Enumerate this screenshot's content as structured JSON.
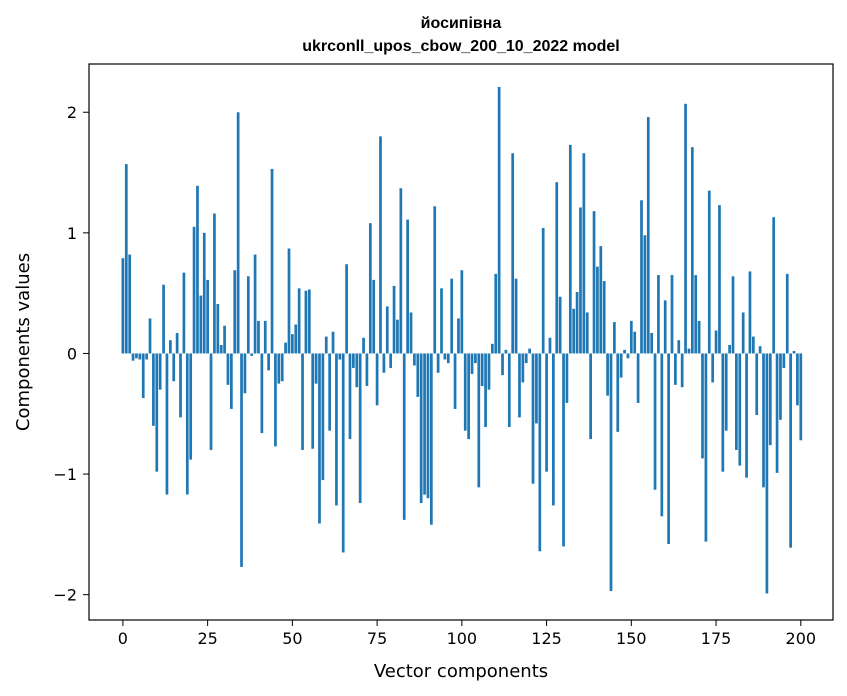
{
  "chart_data": {
    "type": "bar",
    "title_line1": "йосипівна",
    "title_line2": "ukrconll_upos_cbow_200_10_2022 model",
    "xlabel": "Vector components",
    "ylabel": "Components values",
    "xlim": [
      -10,
      209.5
    ],
    "ylim": [
      -2.21,
      2.4
    ],
    "x_ticks": [
      0,
      25,
      50,
      75,
      100,
      125,
      150,
      175,
      200
    ],
    "y_ticks": [
      -2,
      -1,
      0,
      1,
      2
    ],
    "y_tick_labels": [
      "−2",
      "−1",
      "0",
      "1",
      "2"
    ],
    "bar_color": "#1f77b4",
    "grid": false,
    "legend": "none",
    "values": [
      0.79,
      1.57,
      0.82,
      -0.06,
      -0.04,
      -0.05,
      -0.37,
      -0.05,
      0.29,
      -0.6,
      -0.98,
      -0.3,
      0.57,
      -1.17,
      0.11,
      -0.23,
      0.17,
      -0.53,
      0.67,
      -1.17,
      -0.88,
      1.05,
      1.39,
      0.48,
      1.0,
      0.61,
      -0.8,
      1.16,
      0.41,
      0.07,
      0.23,
      -0.26,
      -0.46,
      0.69,
      2.0,
      -1.77,
      -0.33,
      0.64,
      -0.02,
      0.82,
      0.27,
      -0.66,
      0.27,
      -0.14,
      1.53,
      -0.77,
      -0.25,
      -0.23,
      0.09,
      0.87,
      0.16,
      0.24,
      0.54,
      -0.8,
      0.52,
      0.53,
      -0.79,
      -0.25,
      -1.41,
      -1.05,
      0.14,
      -0.64,
      0.18,
      -1.26,
      -0.05,
      -1.65,
      0.74,
      -0.71,
      -0.12,
      -0.28,
      -1.24,
      0.13,
      -0.27,
      1.08,
      0.61,
      -0.43,
      1.8,
      -0.16,
      0.39,
      -0.12,
      0.56,
      0.28,
      1.37,
      -1.38,
      1.11,
      0.34,
      -0.1,
      -0.36,
      -1.24,
      -1.17,
      -1.2,
      -1.42,
      1.22,
      -0.16,
      0.54,
      -0.05,
      -0.08,
      0.62,
      -0.46,
      0.29,
      0.69,
      -0.64,
      -0.71,
      -0.17,
      -0.08,
      -1.11,
      -0.27,
      -0.61,
      -0.3,
      0.08,
      0.66,
      2.21,
      -0.18,
      0.03,
      -0.61,
      1.66,
      0.62,
      -0.53,
      -0.24,
      -0.08,
      0.04,
      -1.08,
      -0.58,
      -1.64,
      1.04,
      -0.98,
      0.13,
      -1.26,
      1.42,
      0.47,
      -1.6,
      -0.41,
      1.73,
      0.37,
      0.51,
      1.21,
      1.66,
      0.34,
      -0.71,
      1.18,
      0.72,
      0.89,
      0.6,
      -0.35,
      -1.97,
      0.26,
      -0.65,
      -0.2,
      0.03,
      -0.04,
      0.27,
      0.18,
      -0.41,
      1.27,
      0.98,
      1.96,
      0.17,
      -1.13,
      0.65,
      -1.35,
      0.44,
      -1.58,
      0.65,
      -0.26,
      0.11,
      -0.28,
      2.07,
      0.04,
      1.71,
      0.65,
      0.27,
      -0.87,
      -1.56,
      1.35,
      -0.24,
      0.19,
      1.23,
      -0.98,
      -0.64,
      0.07,
      0.64,
      -0.8,
      -0.93,
      0.34,
      -1.03,
      0.68,
      0.14,
      -0.51,
      0.06,
      -1.11,
      -1.99,
      -0.76,
      1.13,
      -0.99,
      -0.55,
      -0.12,
      0.66,
      -1.61,
      0.02,
      -0.43,
      -0.72
    ]
  }
}
